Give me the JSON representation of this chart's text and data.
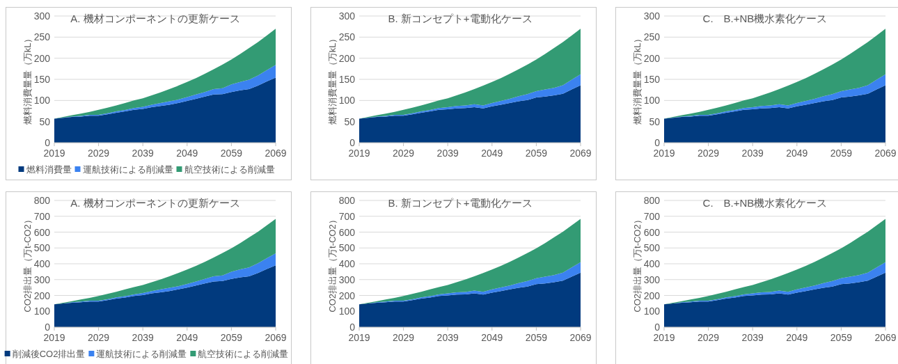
{
  "chart_data": [
    {
      "type": "area",
      "title": "A. 機材コンポーネントの更新ケース",
      "ylabel": "燃料消費量量（万kL）",
      "stacked": true,
      "grid": "y",
      "legend": "bottom",
      "x": [
        2019,
        2021,
        2023,
        2025,
        2027,
        2029,
        2031,
        2033,
        2035,
        2037,
        2039,
        2041,
        2043,
        2045,
        2047,
        2049,
        2051,
        2053,
        2055,
        2057,
        2059,
        2061,
        2063,
        2065,
        2067,
        2069
      ],
      "xlim": [
        2019,
        2069
      ],
      "xticks": [
        2019,
        2029,
        2039,
        2049,
        2059,
        2069
      ],
      "ylim": [
        0,
        300
      ],
      "yticks": [
        0,
        50,
        100,
        150,
        200,
        250,
        300
      ],
      "series": [
        {
          "name": "燃料消費量",
          "color": "#013a7e",
          "values": [
            57,
            59,
            61,
            62,
            64,
            64,
            67,
            71,
            74,
            78,
            80,
            84,
            87,
            90,
            94,
            99,
            104,
            109,
            114,
            115,
            120,
            124,
            127,
            135,
            145,
            154
          ]
        },
        {
          "name": "運航技術による削減量",
          "color": "#3b82f0",
          "values": [
            0,
            0.5,
            1,
            1.5,
            2,
            2,
            2.5,
            3,
            3.5,
            4,
            5,
            6,
            7,
            8,
            8,
            9,
            10,
            11,
            13,
            14,
            18,
            20,
            22,
            24,
            27,
            30
          ]
        },
        {
          "name": "航空技術による削減量",
          "color": "#339b74",
          "values": [
            0,
            1.5,
            3,
            5.5,
            7,
            12,
            13.5,
            14,
            16.5,
            18,
            20,
            22,
            25,
            29,
            33,
            36,
            39,
            43,
            47,
            56,
            59,
            66,
            75,
            79,
            82,
            86
          ]
        }
      ]
    },
    {
      "type": "area",
      "title": "B. 新コンセプト+電動化ケース",
      "ylabel": "燃料消費量量（万kL）",
      "stacked": true,
      "grid": "y",
      "x": [
        2019,
        2021,
        2023,
        2025,
        2027,
        2029,
        2031,
        2033,
        2035,
        2037,
        2039,
        2041,
        2043,
        2045,
        2047,
        2049,
        2051,
        2053,
        2055,
        2057,
        2059,
        2061,
        2063,
        2065,
        2067,
        2069
      ],
      "xlim": [
        2019,
        2069
      ],
      "xticks": [
        2019,
        2029,
        2039,
        2049,
        2059,
        2069
      ],
      "ylim": [
        0,
        300
      ],
      "yticks": [
        0,
        50,
        100,
        150,
        200,
        250,
        300
      ],
      "series": [
        {
          "color": "#013a7e",
          "values": [
            57,
            59,
            61,
            62,
            64,
            64,
            67,
            71,
            74,
            78,
            79,
            81,
            82,
            84,
            81,
            86,
            90,
            94,
            98,
            101,
            107,
            109,
            112,
            116,
            126,
            136
          ]
        },
        {
          "color": "#3b82f0",
          "values": [
            0,
            0.5,
            1,
            1.5,
            2,
            2,
            2.5,
            3,
            3.5,
            4,
            5,
            6,
            6,
            7,
            7,
            8,
            9,
            10,
            12,
            14,
            15,
            17,
            18,
            20,
            23,
            26
          ]
        },
        {
          "color": "#339b74",
          "values": [
            0,
            1.5,
            3,
            5.5,
            7,
            12,
            13.5,
            14,
            16.5,
            18,
            21,
            25,
            31,
            36,
            47,
            50,
            54,
            59,
            64,
            70,
            75,
            84,
            94,
            102,
            105,
            108
          ]
        }
      ]
    },
    {
      "type": "area",
      "title": "C.　B.+NB機水素化ケース",
      "ylabel": "燃料消費量量（万kL）",
      "stacked": true,
      "grid": "y",
      "x": [
        2019,
        2021,
        2023,
        2025,
        2027,
        2029,
        2031,
        2033,
        2035,
        2037,
        2039,
        2041,
        2043,
        2045,
        2047,
        2049,
        2051,
        2053,
        2055,
        2057,
        2059,
        2061,
        2063,
        2065,
        2067,
        2069
      ],
      "xlim": [
        2019,
        2069
      ],
      "xticks": [
        2019,
        2029,
        2039,
        2049,
        2059,
        2069
      ],
      "ylim": [
        0,
        300
      ],
      "yticks": [
        0,
        50,
        100,
        150,
        200,
        250,
        300
      ],
      "series": [
        {
          "color": "#013a7e",
          "values": [
            57,
            59,
            61,
            62,
            64,
            64,
            67,
            71,
            74,
            78,
            79,
            81,
            82,
            84,
            81,
            86,
            90,
            94,
            98,
            101,
            107,
            109,
            112,
            116,
            126,
            136
          ]
        },
        {
          "color": "#3b82f0",
          "values": [
            0,
            0.5,
            1,
            1.5,
            2,
            2,
            2.5,
            3,
            3.5,
            4,
            5,
            6,
            6,
            7,
            7,
            8,
            9,
            10,
            12,
            14,
            15,
            17,
            18,
            20,
            23,
            26
          ]
        },
        {
          "color": "#339b74",
          "values": [
            0,
            1.5,
            3,
            5.5,
            7,
            12,
            13.5,
            14,
            16.5,
            18,
            21,
            25,
            31,
            36,
            47,
            50,
            54,
            59,
            64,
            70,
            75,
            84,
            94,
            102,
            105,
            108
          ]
        }
      ]
    },
    {
      "type": "area",
      "title": "A. 機材コンポーネントの更新ケース",
      "ylabel": "CO2排出量（万t-CO2）",
      "stacked": true,
      "grid": "y",
      "legend": "bottom",
      "x": [
        2019,
        2021,
        2023,
        2025,
        2027,
        2029,
        2031,
        2033,
        2035,
        2037,
        2039,
        2041,
        2043,
        2045,
        2047,
        2049,
        2051,
        2053,
        2055,
        2057,
        2059,
        2061,
        2063,
        2065,
        2067,
        2069
      ],
      "xlim": [
        2019,
        2069
      ],
      "xticks": [
        2019,
        2029,
        2039,
        2049,
        2059,
        2069
      ],
      "ylim": [
        0,
        800
      ],
      "yticks": [
        0,
        100,
        200,
        300,
        400,
        500,
        600,
        700,
        800
      ],
      "series": [
        {
          "name": "削減後CO2排出量",
          "color": "#013a7e",
          "values": [
            144,
            149,
            154,
            157,
            162,
            162,
            170,
            180,
            187,
            197,
            202,
            213,
            220,
            228,
            238,
            250,
            263,
            276,
            288,
            291,
            304,
            314,
            321,
            342,
            367,
            390
          ]
        },
        {
          "name": "運航技術による削減量",
          "color": "#3b82f0",
          "values": [
            0,
            1,
            3,
            4,
            5,
            5,
            6,
            8,
            9,
            10,
            13,
            15,
            18,
            20,
            20,
            23,
            25,
            28,
            33,
            35,
            46,
            51,
            56,
            61,
            68,
            76
          ]
        },
        {
          "name": "航空技術による削減量",
          "color": "#339b74",
          "values": [
            0,
            4,
            7,
            14,
            18,
            30,
            34,
            35,
            42,
            46,
            51,
            55,
            63,
            73,
            84,
            91,
            99,
            108,
            119,
            142,
            148,
            166,
            190,
            199,
            208,
            217
          ]
        }
      ]
    },
    {
      "type": "area",
      "title": "B. 新コンセプト+電動化ケース",
      "ylabel": "CO2排出量（万t-CO2）",
      "stacked": true,
      "grid": "y",
      "x": [
        2019,
        2021,
        2023,
        2025,
        2027,
        2029,
        2031,
        2033,
        2035,
        2037,
        2039,
        2041,
        2043,
        2045,
        2047,
        2049,
        2051,
        2053,
        2055,
        2057,
        2059,
        2061,
        2063,
        2065,
        2067,
        2069
      ],
      "xlim": [
        2019,
        2069
      ],
      "xticks": [
        2019,
        2029,
        2039,
        2049,
        2059,
        2069
      ],
      "ylim": [
        0,
        800
      ],
      "yticks": [
        0,
        100,
        200,
        300,
        400,
        500,
        600,
        700,
        800
      ],
      "series": [
        {
          "color": "#013a7e",
          "values": [
            144,
            149,
            154,
            157,
            162,
            162,
            170,
            180,
            187,
            197,
            200,
            205,
            207,
            213,
            205,
            218,
            228,
            238,
            248,
            256,
            271,
            276,
            283,
            293,
            319,
            344
          ]
        },
        {
          "color": "#3b82f0",
          "values": [
            0,
            1,
            3,
            4,
            5,
            5,
            6,
            8,
            9,
            10,
            13,
            15,
            15,
            18,
            18,
            20,
            23,
            25,
            30,
            35,
            38,
            43,
            46,
            51,
            58,
            66
          ]
        },
        {
          "color": "#339b74",
          "values": [
            0,
            4,
            7,
            14,
            18,
            30,
            34,
            35,
            42,
            46,
            53,
            63,
            79,
            90,
            119,
            126,
            136,
            149,
            162,
            177,
            189,
            212,
            238,
            258,
            266,
            273
          ]
        }
      ]
    },
    {
      "type": "area",
      "title": "C.　B.+NB機水素化ケース",
      "ylabel": "CO2排出量（万t-CO2）",
      "stacked": true,
      "grid": "y",
      "x": [
        2019,
        2021,
        2023,
        2025,
        2027,
        2029,
        2031,
        2033,
        2035,
        2037,
        2039,
        2041,
        2043,
        2045,
        2047,
        2049,
        2051,
        2053,
        2055,
        2057,
        2059,
        2061,
        2063,
        2065,
        2067,
        2069
      ],
      "xlim": [
        2019,
        2069
      ],
      "xticks": [
        2019,
        2029,
        2039,
        2049,
        2059,
        2069
      ],
      "ylim": [
        0,
        800
      ],
      "yticks": [
        0,
        100,
        200,
        300,
        400,
        500,
        600,
        700,
        800
      ],
      "series": [
        {
          "color": "#013a7e",
          "values": [
            144,
            149,
            154,
            157,
            162,
            162,
            170,
            180,
            187,
            197,
            200,
            205,
            207,
            213,
            205,
            218,
            228,
            238,
            248,
            256,
            271,
            276,
            283,
            293,
            319,
            344
          ]
        },
        {
          "color": "#3b82f0",
          "values": [
            0,
            1,
            3,
            4,
            5,
            5,
            6,
            8,
            9,
            10,
            13,
            15,
            15,
            18,
            18,
            20,
            23,
            25,
            30,
            35,
            38,
            43,
            46,
            51,
            58,
            66
          ]
        },
        {
          "color": "#339b74",
          "values": [
            0,
            4,
            7,
            14,
            18,
            30,
            34,
            35,
            42,
            46,
            53,
            63,
            79,
            90,
            119,
            126,
            136,
            149,
            162,
            177,
            189,
            212,
            238,
            258,
            266,
            273
          ]
        }
      ]
    }
  ]
}
